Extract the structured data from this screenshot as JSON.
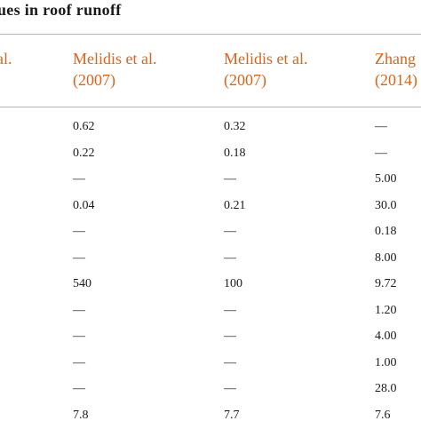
{
  "caption": "ues in roof runoff",
  "headers": [
    {
      "line1": "al.",
      "line2": ""
    },
    {
      "line1": "Melidis et al.",
      "line2": "(2007)"
    },
    {
      "line1": "Melidis et al.",
      "line2": "(2007)"
    },
    {
      "line1": "Zhang",
      "line2": "(2014)"
    }
  ],
  "rows": [
    {
      "c1": "0.62",
      "c2": "0.32",
      "c3": "—"
    },
    {
      "c1": "0.22",
      "c2": "0.18",
      "c3": "—"
    },
    {
      "c1": "—",
      "c2": "—",
      "c3": "5.00"
    },
    {
      "c1": "0.04",
      "c2": "0.21",
      "c3": "30.0"
    },
    {
      "c1": "—",
      "c2": "—",
      "c3": "0.18"
    },
    {
      "c1": "—",
      "c2": "—",
      "c3": "8.00"
    },
    {
      "c1": "540",
      "c2": "100",
      "c3": "9.72"
    },
    {
      "c1": "—",
      "c2": "—",
      "c3": "1.20"
    },
    {
      "c1": "—",
      "c2": "—",
      "c3": "4.00"
    },
    {
      "c1": "—",
      "c2": "—",
      "c3": "1.00"
    },
    {
      "c1": "—",
      "c2": "—",
      "c3": "28.0"
    },
    {
      "c1": "7.8",
      "c2": "7.7",
      "c3": "7.6"
    }
  ],
  "colors": {
    "header_accent": "#d9651a",
    "rule": "#b5b5b5",
    "text": "#1a1a1a"
  }
}
